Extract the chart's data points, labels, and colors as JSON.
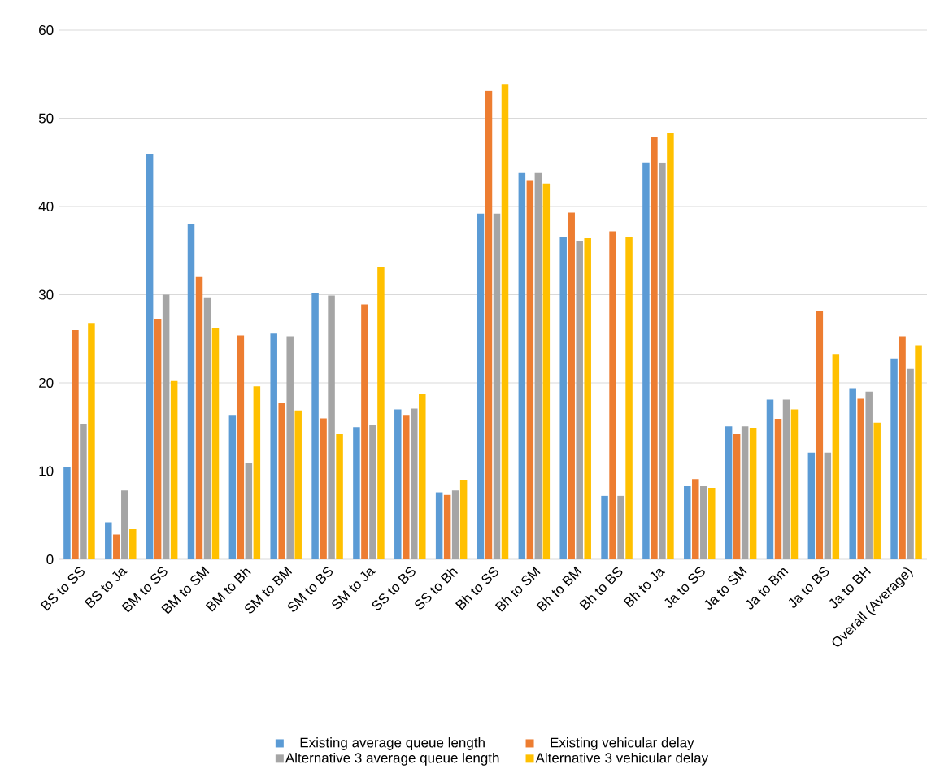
{
  "chart_data": {
    "type": "bar",
    "categories": [
      "BS to SS",
      "BS to Ja",
      "BM to SS",
      "BM to SM",
      "BM to Bh",
      "SM to BM",
      "SM to BS",
      "SM to Ja",
      "SS to BS",
      "SS to Bh",
      "Bh to SS",
      "Bh to SM",
      "Bh to BM",
      "Bh to BS",
      "Bh to Ja",
      "Ja to SS",
      "Ja to SM",
      "Ja to Bm",
      "Ja to BS",
      "Ja to BH",
      "Overall (Average)"
    ],
    "series": [
      {
        "name": "Existing average queue length",
        "color": "#5b9bd5",
        "values": [
          10.5,
          4.2,
          46,
          38,
          16.3,
          25.6,
          30.2,
          15,
          17,
          7.6,
          39.2,
          43.8,
          36.5,
          7.2,
          45,
          8.3,
          15.1,
          18.1,
          12.1,
          19.4,
          22.7
        ]
      },
      {
        "name": "Existing vehicular delay",
        "color": "#ed7d31",
        "values": [
          26,
          2.8,
          27.2,
          32,
          25.4,
          17.7,
          16,
          28.9,
          16.3,
          7.3,
          53.1,
          42.9,
          39.3,
          37.2,
          47.9,
          9.1,
          14.2,
          15.9,
          28.1,
          18.2,
          25.3
        ]
      },
      {
        "name": "Alternative 3 average queue length",
        "color": "#a5a5a5",
        "values": [
          15.3,
          7.8,
          30,
          29.7,
          10.9,
          25.3,
          29.9,
          15.2,
          17.1,
          7.8,
          39.2,
          43.8,
          36.1,
          7.2,
          45,
          8.3,
          15.1,
          18.1,
          12.1,
          19,
          21.6
        ]
      },
      {
        "name": "Alternative 3 vehicular delay",
        "color": "#ffc000",
        "values": [
          26.8,
          3.4,
          20.2,
          26.2,
          19.6,
          16.9,
          14.2,
          33.1,
          18.7,
          9,
          53.9,
          42.6,
          36.4,
          36.5,
          48.3,
          8.1,
          14.9,
          17,
          23.2,
          15.5,
          24.2
        ]
      }
    ],
    "ylim": [
      0,
      60
    ],
    "yticks": [
      0,
      10,
      20,
      30,
      40,
      50,
      60
    ],
    "grid": "y",
    "legend": "bottom"
  }
}
